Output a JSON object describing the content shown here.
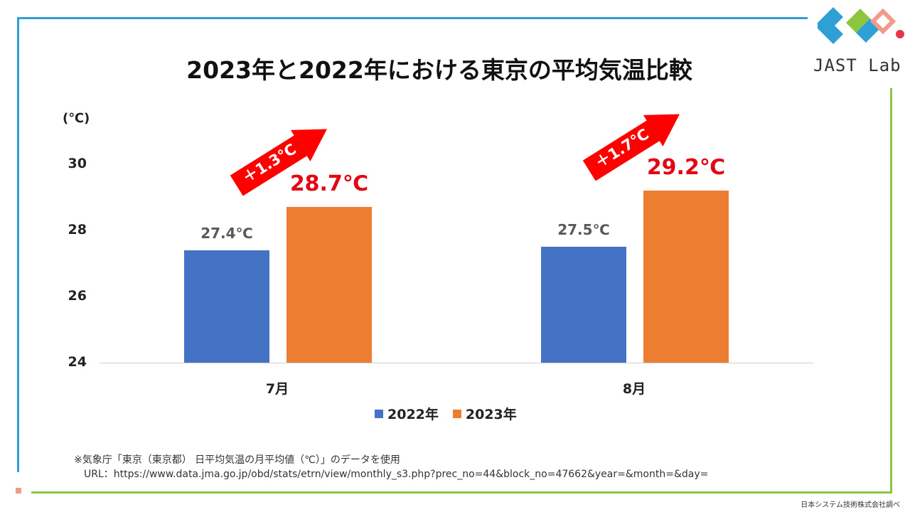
{
  "colors": {
    "series_2022": "#4472c4",
    "series_2023": "#ed7d31",
    "accent_red": "#e30613",
    "frame_blue": "#2ea0d6",
    "frame_green": "#8cc63f"
  },
  "logo": {
    "text": "JAST Lab",
    "icon": "jast-lab-logo-icon"
  },
  "chart_data": {
    "type": "bar",
    "title": "2023年と2022年における東京の平均気温比較",
    "unit_label": "(℃)",
    "categories": [
      "7月",
      "8月"
    ],
    "series": [
      {
        "name": "2022年",
        "values": [
          27.4,
          27.5
        ],
        "labels": [
          "27.4℃",
          "27.5℃"
        ]
      },
      {
        "name": "2023年",
        "values": [
          28.7,
          29.2
        ],
        "labels": [
          "28.7℃",
          "29.2℃"
        ]
      }
    ],
    "ylim": [
      24,
      30
    ],
    "yticks": [
      "24",
      "26",
      "28",
      "30"
    ],
    "grid": false,
    "legend_position": "bottom",
    "annotations": [
      "＋1.3℃",
      "＋1.7℃"
    ]
  },
  "notes": {
    "source": "※気象庁「東京（東京都） 日平均気温の月平均値（℃）」のデータを使用",
    "url": "URL：https://www.data.jma.go.jp/obd/stats/etrn/view/monthly_s3.php?prec_no=44&block_no=47662&year=&month=&day="
  },
  "footer": "日本システム技術株式会社調べ"
}
